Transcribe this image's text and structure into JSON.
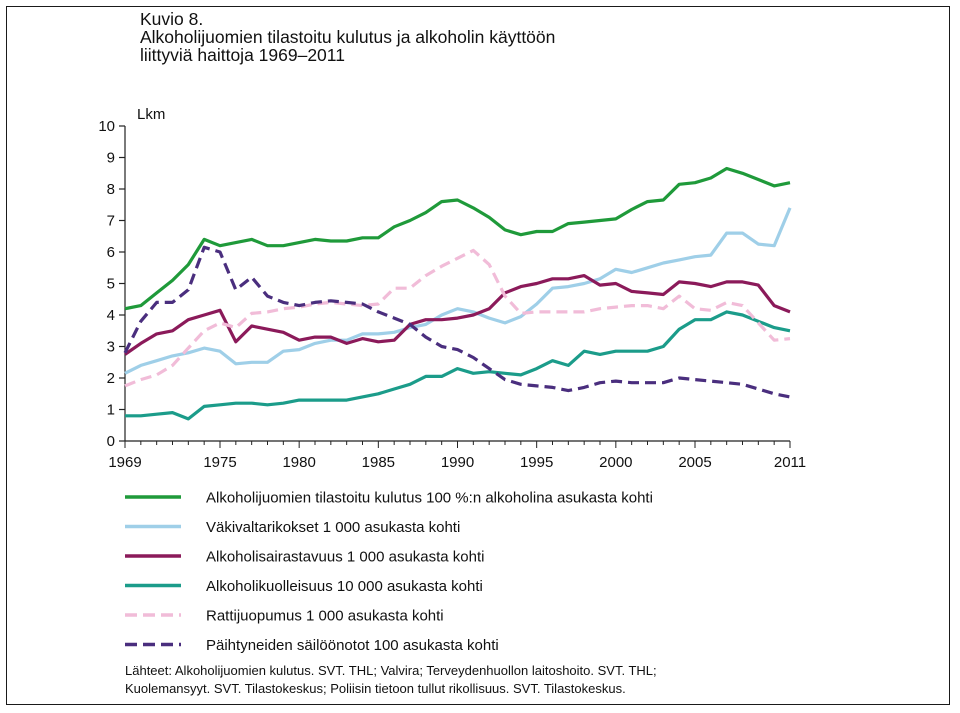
{
  "heading": {
    "figure_label": "Kuvio 8.",
    "title_line1": "Alkoholijuomien tilastoitu kulutus ja alkoholin käyttöön",
    "title_line2": "liittyviä haittoja 1969–2011"
  },
  "chart_data": {
    "type": "line",
    "ylabel": "Lkm",
    "xlabel": "",
    "ylim": [
      0,
      10
    ],
    "xlim": [
      1969,
      2011
    ],
    "yticks": [
      "0",
      "1",
      "2",
      "3",
      "4",
      "5",
      "6",
      "7",
      "8",
      "9",
      "10"
    ],
    "xticks": [
      "1969",
      "1975",
      "1980",
      "1985",
      "1990",
      "1995",
      "2000",
      "2005",
      "2011"
    ],
    "grid": false,
    "legend_position": "bottom",
    "x": [
      1969,
      1970,
      1971,
      1972,
      1973,
      1974,
      1975,
      1976,
      1977,
      1978,
      1979,
      1980,
      1981,
      1982,
      1983,
      1984,
      1985,
      1986,
      1987,
      1988,
      1989,
      1990,
      1991,
      1992,
      1993,
      1994,
      1995,
      1996,
      1997,
      1998,
      1999,
      2000,
      2001,
      2002,
      2003,
      2004,
      2005,
      2006,
      2007,
      2008,
      2009,
      2010,
      2011
    ],
    "series": [
      {
        "name": "Alkoholijuomien tilastoitu kulutus 100 %:n alkoholina asukasta kohti",
        "color": "#1f9a3a",
        "dash": false,
        "values": [
          4.2,
          4.3,
          4.7,
          5.1,
          5.6,
          6.4,
          6.2,
          6.3,
          6.4,
          6.2,
          6.2,
          6.3,
          6.4,
          6.35,
          6.35,
          6.45,
          6.45,
          6.8,
          7.0,
          7.25,
          7.6,
          7.65,
          7.4,
          7.1,
          6.7,
          6.55,
          6.65,
          6.65,
          6.9,
          6.95,
          7.0,
          7.05,
          7.35,
          7.6,
          7.65,
          8.15,
          8.2,
          8.35,
          8.65,
          8.5,
          8.3,
          8.1,
          8.2
        ]
      },
      {
        "name": "Väkivaltarikokset 1 000 asukasta kohti",
        "color": "#9fcfe8",
        "dash": false,
        "values": [
          2.15,
          2.4,
          2.55,
          2.7,
          2.8,
          2.95,
          2.85,
          2.45,
          2.5,
          2.5,
          2.85,
          2.9,
          3.1,
          3.2,
          3.2,
          3.4,
          3.4,
          3.45,
          3.6,
          3.7,
          4.0,
          4.2,
          4.1,
          3.9,
          3.75,
          3.95,
          4.35,
          4.85,
          4.9,
          5.0,
          5.15,
          5.45,
          5.35,
          5.5,
          5.65,
          5.75,
          5.85,
          5.9,
          6.6,
          6.6,
          6.25,
          6.2,
          7.4
        ]
      },
      {
        "name": "Alkoholisairastavuus 1 000 asukasta kohti",
        "color": "#8b1a5a",
        "dash": false,
        "values": [
          2.75,
          3.1,
          3.4,
          3.5,
          3.85,
          4.0,
          4.15,
          3.15,
          3.65,
          3.55,
          3.45,
          3.2,
          3.3,
          3.3,
          3.1,
          3.25,
          3.15,
          3.2,
          3.7,
          3.85,
          3.85,
          3.9,
          4.0,
          4.2,
          4.7,
          4.9,
          5.0,
          5.15,
          5.15,
          5.25,
          4.95,
          5.0,
          4.75,
          4.7,
          4.65,
          5.05,
          5.0,
          4.9,
          5.05,
          5.05,
          4.95,
          4.3,
          4.1
        ]
      },
      {
        "name": "Alkoholikuolleisuus 10 000 asukasta kohti",
        "color": "#1b9c8a",
        "dash": false,
        "values": [
          0.8,
          0.8,
          0.85,
          0.9,
          0.7,
          1.1,
          1.15,
          1.2,
          1.2,
          1.15,
          1.2,
          1.3,
          1.3,
          1.3,
          1.3,
          1.4,
          1.5,
          1.65,
          1.8,
          2.05,
          2.05,
          2.3,
          2.15,
          2.2,
          2.15,
          2.1,
          2.3,
          2.55,
          2.4,
          2.85,
          2.75,
          2.85,
          2.85,
          2.85,
          3.0,
          3.55,
          3.85,
          3.85,
          4.1,
          4.0,
          3.8,
          3.6,
          3.5
        ]
      },
      {
        "name": "Rattijuopumus 1 000 asukasta kohti",
        "color": "#f1bcd8",
        "dash": true,
        "values": [
          1.75,
          1.95,
          2.1,
          2.4,
          2.95,
          3.5,
          3.75,
          3.6,
          4.05,
          4.1,
          4.2,
          4.25,
          4.35,
          4.4,
          4.35,
          4.3,
          4.35,
          4.85,
          4.85,
          5.25,
          5.55,
          5.8,
          6.05,
          5.6,
          4.6,
          4.05,
          4.1,
          4.1,
          4.1,
          4.1,
          4.2,
          4.25,
          4.3,
          4.3,
          4.2,
          4.6,
          4.2,
          4.15,
          4.4,
          4.3,
          3.75,
          3.2,
          3.25
        ]
      },
      {
        "name": "Päihtyneiden säilöönotot 100 asukasta kohti",
        "color": "#4a2e7e",
        "dash": true,
        "values": [
          2.8,
          3.8,
          4.4,
          4.4,
          4.8,
          6.15,
          6.0,
          4.8,
          5.2,
          4.6,
          4.4,
          4.3,
          4.4,
          4.45,
          4.4,
          4.35,
          4.1,
          3.9,
          3.7,
          3.3,
          3.0,
          2.9,
          2.65,
          2.3,
          1.95,
          1.8,
          1.75,
          1.7,
          1.6,
          1.7,
          1.85,
          1.9,
          1.85,
          1.85,
          1.85,
          2.0,
          1.95,
          1.9,
          1.85,
          1.8,
          1.65,
          1.5,
          1.4
        ]
      }
    ]
  },
  "sources": {
    "line1": "Lähteet: Alkoholijuomien kulutus. SVT. THL; Valvira; Terveydenhuollon laitoshoito. SVT. THL;",
    "line2": "Kuolemansyyt. SVT. Tilastokeskus; Poliisin tietoon tullut rikollisuus. SVT. Tilastokeskus."
  }
}
